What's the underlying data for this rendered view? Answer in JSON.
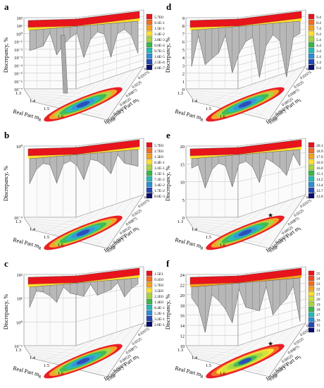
{
  "figure": {
    "panels": [
      {
        "letter": "a",
        "z_label": "Discrepancy, %",
        "z_ticks": [
          "10²",
          "10¹",
          "10⁰",
          "10⁻¹",
          "10⁻²",
          "10⁻³",
          "10⁻⁴",
          "10⁻⁵",
          "10⁻⁶",
          "10⁻⁷"
        ],
        "x_label": "Real Part m",
        "x_label_sub": "R",
        "x_ticks": [
          "1.3",
          "1.4",
          "1.5",
          "1.6"
        ],
        "y_label": "Imaginary Part m",
        "y_label_sub": "I",
        "y_ticks": [
          "0.0425",
          "0.03375",
          "0.0225",
          "0.00875",
          "0.00525",
          "0.00375",
          "0.002"
        ],
        "legend": {
          "values": [
            "5.7E0",
            "9.1E-1",
            "1.5E-1",
            "2.4E-2",
            "3.8E-3",
            "6.0E-4",
            "9.7E-5",
            "1.6E-5",
            "2.5E-6",
            "4.0E-7"
          ],
          "colors": [
            "#e8141c",
            "#f46d1f",
            "#f6a21c",
            "#ffe12b",
            "#a9d43b",
            "#37b849",
            "#25b9b3",
            "#2c8fd6",
            "#2347b5",
            "#0a0f6e"
          ]
        }
      },
      {
        "letter": "b",
        "z_label": "Discrepancy, %",
        "z_ticks": [
          "10⁰",
          "10⁻⁵"
        ],
        "x_label": "Real Part m",
        "x_label_sub": "R",
        "x_ticks": [
          "1.3",
          "1.4",
          "1.5",
          "1.6"
        ],
        "y_label": "Imaginary Part m",
        "y_label_sub": "I",
        "y_ticks": [
          "0.0425",
          "0.03375",
          "0.0225",
          "0.00875",
          "0.00525",
          "0.00375",
          "0.002"
        ],
        "legend": {
          "values": [
            "5.7E0",
            "2.7E0",
            "1.3E0",
            "6.4E-1",
            "3.1E-1",
            "1.5E-1",
            "7.1E-2",
            "3.4E-2",
            "1.7E-2",
            "8.0E-3"
          ],
          "colors": [
            "#e8141c",
            "#f46d1f",
            "#f6a21c",
            "#ffe12b",
            "#a9d43b",
            "#37b849",
            "#25b9b3",
            "#2c8fd6",
            "#2347b5",
            "#0a0f6e"
          ]
        }
      },
      {
        "letter": "c",
        "z_label": "Discrepancy, %",
        "z_ticks": [
          "10²",
          "10¹",
          "10⁰",
          "10⁻¹"
        ],
        "x_label": "Real Part m",
        "x_label_sub": "R",
        "x_ticks": [
          "1.3",
          "1.4",
          "1.5",
          "1.6"
        ],
        "y_label": "Imaginary Part m",
        "y_label_sub": "I",
        "y_ticks": [
          "0.0425",
          "0.03375",
          "0.0225",
          "0.00875",
          "0.00525",
          "0.00375",
          "0.002"
        ],
        "legend": {
          "values": [
            "1.5E1",
            "9.1E0",
            "5.7E0",
            "3.5E0",
            "2.2E0",
            "1.4E0",
            "8.4E-1",
            "5.2E-1",
            "3.2E-1",
            "2.0E-1"
          ],
          "colors": [
            "#e8141c",
            "#f46d1f",
            "#f6a21c",
            "#ffe12b",
            "#a9d43b",
            "#37b849",
            "#25b9b3",
            "#2c8fd6",
            "#2347b5",
            "#0a0f6e"
          ]
        }
      },
      {
        "letter": "d",
        "z_label": "Discrepancy, %",
        "z_ticks": [
          "9",
          "8",
          "7",
          "6",
          "5",
          "4",
          "3",
          "2",
          "1",
          "0"
        ],
        "x_label": "Real Part m",
        "x_label_sub": "R",
        "x_ticks": [
          "1.3",
          "1.4",
          "1.5",
          "1.6"
        ],
        "y_label": "Imaginary Part m",
        "y_label_sub": "I",
        "y_ticks": [
          "0.0425",
          "0.03375",
          "0.0225",
          "0.00875",
          "0.00525",
          "0.00375",
          "0.002"
        ],
        "legend": {
          "values": [
            "9.4",
            "8.4",
            "7.4",
            "6.4",
            "5.4",
            "4.4",
            "3.4",
            "2.4",
            "1.4",
            "0.4"
          ],
          "colors": [
            "#e8141c",
            "#f46d1f",
            "#f6a21c",
            "#ffe12b",
            "#a9d43b",
            "#37b849",
            "#25b9b3",
            "#2c8fd6",
            "#2347b5",
            "#0a0f6e"
          ]
        }
      },
      {
        "letter": "e",
        "z_label": "Discrepancy, %",
        "z_ticks": [
          "20",
          "15",
          "10",
          "5",
          "0"
        ],
        "x_label": "Real Part m",
        "x_label_sub": "R",
        "x_ticks": [
          "1.3",
          "1.4",
          "1.5",
          "1.6"
        ],
        "y_label": "Imaginary Part m",
        "y_label_sub": "I",
        "y_ticks": [
          "0.0425",
          "0.03375",
          "0.0225",
          "0.00875",
          "0.00525",
          "0.00375",
          "0.002"
        ],
        "legend": {
          "values": [
            "20.1",
            "18.9",
            "17.9",
            "16.9",
            "16.0",
            "15.1",
            "14.2",
            "13.4",
            "12.7",
            "12.0"
          ],
          "colors": [
            "#e8141c",
            "#f46d1f",
            "#f6a21c",
            "#ffe12b",
            "#a9d43b",
            "#37b849",
            "#25b9b3",
            "#2c8fd6",
            "#2347b5",
            "#0a0f6e"
          ]
        }
      },
      {
        "letter": "f",
        "z_label": "Discrepancy, %",
        "z_ticks": [
          "24",
          "22",
          "20",
          "18",
          "16",
          "14",
          "12",
          "10"
        ],
        "x_label": "Real Part m",
        "x_label_sub": "R",
        "x_ticks": [
          "1.3",
          "1.4",
          "1.5",
          "1.6"
        ],
        "y_label": "Imaginary Part m",
        "y_label_sub": "I",
        "y_ticks": [
          "0.0425",
          "0.03375",
          "0.0225",
          "0.00875",
          "0.00525",
          "0.00375",
          "0.002"
        ],
        "legend": {
          "values": [
            "25",
            "24",
            "23",
            "22",
            "21",
            "20",
            "19",
            "18",
            "17",
            "16",
            "15",
            "14"
          ],
          "colors": [
            "#e8141c",
            "#f0481e",
            "#f46d1f",
            "#f6a21c",
            "#ffe12b",
            "#cde234",
            "#a9d43b",
            "#37b849",
            "#25b9b3",
            "#2c8fd6",
            "#2347b5",
            "#0a0f6e"
          ]
        }
      }
    ]
  },
  "chart_data": [
    {
      "type": "surface3d",
      "panel": "a",
      "xlabel": "Real Part mR",
      "ylabel": "Imaginary Part mI",
      "zlabel": "Discrepancy, %",
      "zscale": "log",
      "x_ticks": [
        1.3,
        1.4,
        1.5,
        1.6
      ],
      "y_ticks": [
        0.0425,
        0.03375,
        0.0225,
        0.00875,
        0.00525,
        0.00375,
        0.002
      ],
      "legend_values": [
        5.7,
        0.91,
        0.15,
        0.024,
        0.0038,
        0.0006,
        9.7e-05,
        1.6e-05,
        2.5e-06,
        4e-07
      ]
    },
    {
      "type": "surface3d",
      "panel": "b",
      "xlabel": "Real Part mR",
      "ylabel": "Imaginary Part mI",
      "zlabel": "Discrepancy, %",
      "zscale": "log",
      "x_ticks": [
        1.3,
        1.4,
        1.5,
        1.6
      ],
      "y_ticks": [
        0.0425,
        0.03375,
        0.0225,
        0.00875,
        0.00525,
        0.00375,
        0.002
      ],
      "legend_values": [
        5.7,
        2.7,
        1.3,
        0.64,
        0.31,
        0.15,
        0.071,
        0.034,
        0.017,
        0.008
      ]
    },
    {
      "type": "surface3d",
      "panel": "c",
      "xlabel": "Real Part mR",
      "ylabel": "Imaginary Part mI",
      "zlabel": "Discrepancy, %",
      "zscale": "log",
      "x_ticks": [
        1.3,
        1.4,
        1.5,
        1.6
      ],
      "y_ticks": [
        0.0425,
        0.03375,
        0.0225,
        0.00875,
        0.00525,
        0.00375,
        0.002
      ],
      "legend_values": [
        15,
        9.1,
        5.7,
        3.5,
        2.2,
        1.4,
        0.84,
        0.52,
        0.32,
        0.2
      ]
    },
    {
      "type": "surface3d",
      "panel": "d",
      "xlabel": "Real Part mR",
      "ylabel": "Imaginary Part mI",
      "zlabel": "Discrepancy, %",
      "zscale": "linear",
      "zlim": [
        0,
        9
      ],
      "x_ticks": [
        1.3,
        1.4,
        1.5,
        1.6
      ],
      "y_ticks": [
        0.0425,
        0.03375,
        0.0225,
        0.00875,
        0.00525,
        0.00375,
        0.002
      ],
      "legend_values": [
        9.4,
        8.4,
        7.4,
        6.4,
        5.4,
        4.4,
        3.4,
        2.4,
        1.4,
        0.4
      ]
    },
    {
      "type": "surface3d",
      "panel": "e",
      "xlabel": "Real Part mR",
      "ylabel": "Imaginary Part mI",
      "zlabel": "Discrepancy, %",
      "zscale": "linear",
      "zlim": [
        0,
        20
      ],
      "x_ticks": [
        1.3,
        1.4,
        1.5,
        1.6
      ],
      "y_ticks": [
        0.0425,
        0.03375,
        0.0225,
        0.00875,
        0.00525,
        0.00375,
        0.002
      ],
      "legend_values": [
        20.1,
        18.9,
        17.9,
        16.9,
        16.0,
        15.1,
        14.2,
        13.4,
        12.7,
        12.0
      ]
    },
    {
      "type": "surface3d",
      "panel": "f",
      "xlabel": "Real Part mR",
      "ylabel": "Imaginary Part mI",
      "zlabel": "Discrepancy, %",
      "zscale": "linear",
      "zlim": [
        10,
        24
      ],
      "x_ticks": [
        1.3,
        1.4,
        1.5,
        1.6
      ],
      "y_ticks": [
        0.0425,
        0.03375,
        0.0225,
        0.00875,
        0.00525,
        0.00375,
        0.002
      ],
      "legend_values": [
        25,
        24,
        23,
        22,
        21,
        20,
        19,
        18,
        17,
        16,
        15,
        14
      ]
    }
  ]
}
